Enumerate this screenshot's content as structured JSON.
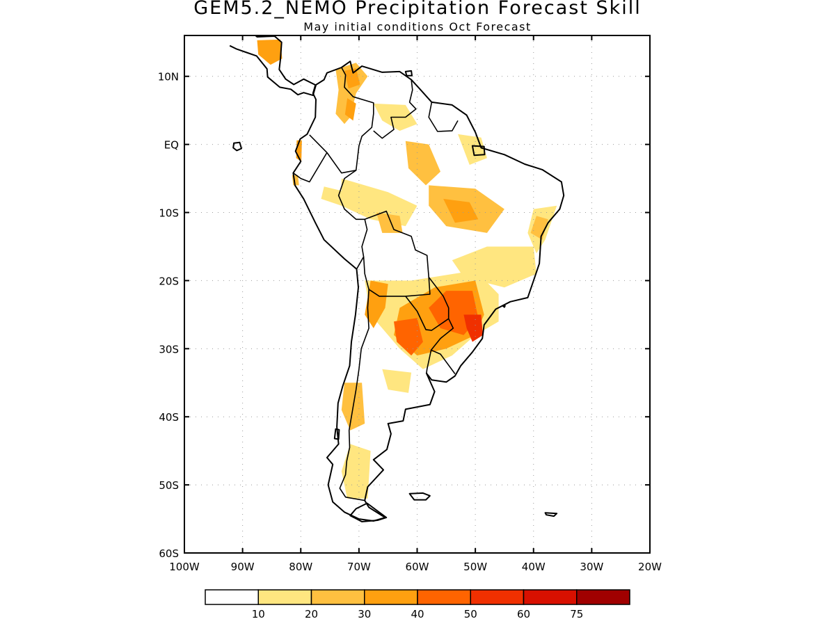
{
  "title": "GEM5.2_NEMO Precipitation Forecast Skill",
  "subtitle": "May initial conditions  Oct Forecast",
  "axes": {
    "lat_labels": [
      "10N",
      "EQ",
      "10S",
      "20S",
      "30S",
      "40S",
      "50S",
      "60S"
    ],
    "lat_values": [
      10,
      0,
      -10,
      -20,
      -30,
      -40,
      -50,
      -60
    ],
    "lon_labels": [
      "100W",
      "90W",
      "80W",
      "70W",
      "60W",
      "50W",
      "40W",
      "30W",
      "20W"
    ],
    "lon_values": [
      -100,
      -90,
      -80,
      -70,
      -60,
      -50,
      -40,
      -30,
      -20
    ],
    "lat_range": [
      -60,
      16
    ],
    "lon_range": [
      -100,
      -20
    ],
    "grid": "dotted"
  },
  "legend": {
    "labels": [
      "10",
      "20",
      "30",
      "40",
      "50",
      "60",
      "75"
    ],
    "colors": [
      "#ffffff",
      "#ffe680",
      "#ffc040",
      "#ffa010",
      "#ff6400",
      "#f03000",
      "#d81000",
      "#a00000"
    ]
  },
  "map": {
    "region": "South America",
    "coastline_color": "#000000",
    "skill_regions": [
      {
        "name": "central-america-skill",
        "level": 3,
        "lonlat": [
          [
            -87.5,
            15.3
          ],
          [
            -83.5,
            15.4
          ],
          [
            -83.2,
            12.6
          ],
          [
            -85.2,
            11.7
          ],
          [
            -87.3,
            13.2
          ]
        ]
      },
      {
        "name": "colombia-venezuela-skill",
        "level": 2,
        "lonlat": [
          [
            -74,
            11
          ],
          [
            -70.5,
            12
          ],
          [
            -68.5,
            10
          ],
          [
            -70.5,
            7.5
          ],
          [
            -71.5,
            4
          ],
          [
            -72.5,
            3
          ],
          [
            -74,
            4.5
          ],
          [
            -73.5,
            8
          ]
        ]
      },
      {
        "name": "venezuela-north-skill",
        "level": 3,
        "lonlat": [
          [
            -72.5,
            10.8
          ],
          [
            -70.5,
            11.2
          ],
          [
            -69.8,
            8.8
          ],
          [
            -71.8,
            8.2
          ]
        ]
      },
      {
        "name": "colombia-central-skill",
        "level": 3,
        "lonlat": [
          [
            -72,
            6.8
          ],
          [
            -70.5,
            6
          ],
          [
            -71,
            3.5
          ],
          [
            -72.4,
            4.4
          ]
        ]
      },
      {
        "name": "guiana-skill",
        "level": 1,
        "lonlat": [
          [
            -67.5,
            6
          ],
          [
            -62,
            5.8
          ],
          [
            -60,
            3
          ],
          [
            -63,
            2
          ],
          [
            -66,
            3.5
          ]
        ]
      },
      {
        "name": "amazon-north-skill",
        "level": 2,
        "lonlat": [
          [
            -62,
            0.5
          ],
          [
            -58,
            0
          ],
          [
            -56,
            -4
          ],
          [
            -58.5,
            -6
          ],
          [
            -61.5,
            -3.5
          ]
        ]
      },
      {
        "name": "brazil-central-skill",
        "level": 2,
        "lonlat": [
          [
            -58,
            -6
          ],
          [
            -50,
            -6.5
          ],
          [
            -45,
            -9.5
          ],
          [
            -48,
            -13
          ],
          [
            -55,
            -12
          ],
          [
            -58,
            -9
          ]
        ]
      },
      {
        "name": "brazil-central-core",
        "level": 3,
        "lonlat": [
          [
            -55.5,
            -8
          ],
          [
            -51,
            -8.5
          ],
          [
            -49.5,
            -11
          ],
          [
            -53.5,
            -11.5
          ]
        ]
      },
      {
        "name": "peru-brazil-border-skill",
        "level": 1,
        "lonlat": [
          [
            -73,
            -5
          ],
          [
            -65,
            -7
          ],
          [
            -60,
            -9
          ],
          [
            -62,
            -12
          ],
          [
            -68,
            -11
          ],
          [
            -73,
            -9
          ]
        ]
      },
      {
        "name": "bolivia-north-skill",
        "level": 2,
        "lonlat": [
          [
            -67,
            -10
          ],
          [
            -63,
            -10.5
          ],
          [
            -62.5,
            -13
          ],
          [
            -66,
            -13
          ]
        ]
      },
      {
        "name": "northeast-brazil-skill",
        "level": 1,
        "lonlat": [
          [
            -40,
            -9.5
          ],
          [
            -36,
            -9
          ],
          [
            -38,
            -14
          ],
          [
            -39.5,
            -16
          ],
          [
            -41,
            -13
          ]
        ]
      },
      {
        "name": "northeast-brazil-core",
        "level": 2,
        "lonlat": [
          [
            -39.5,
            -10.5
          ],
          [
            -37.5,
            -11
          ],
          [
            -38.5,
            -14
          ],
          [
            -40.5,
            -13
          ]
        ]
      },
      {
        "name": "brazil-interior-skill",
        "level": 1,
        "lonlat": [
          [
            -48,
            -15
          ],
          [
            -40,
            -15
          ],
          [
            -39.5,
            -19
          ],
          [
            -45,
            -21
          ],
          [
            -52,
            -19.5
          ],
          [
            -54,
            -17
          ]
        ]
      },
      {
        "name": "south-brazil-skill",
        "level": 1,
        "lonlat": [
          [
            -61,
            -20
          ],
          [
            -50,
            -18.5
          ],
          [
            -46,
            -22
          ],
          [
            -46,
            -26
          ],
          [
            -50,
            -28
          ],
          [
            -54,
            -31
          ],
          [
            -59,
            -33
          ],
          [
            -63,
            -30
          ],
          [
            -68,
            -25
          ],
          [
            -69,
            -20
          ]
        ]
      },
      {
        "name": "south-brazil-mid",
        "level": 3,
        "lonlat": [
          [
            -57,
            -21
          ],
          [
            -50,
            -20
          ],
          [
            -48.5,
            -25
          ],
          [
            -50,
            -28
          ],
          [
            -55,
            -30
          ],
          [
            -60,
            -31
          ],
          [
            -64,
            -28
          ],
          [
            -63,
            -24
          ]
        ]
      },
      {
        "name": "south-brazil-high",
        "level": 4,
        "lonlat": [
          [
            -55,
            -21.5
          ],
          [
            -50.5,
            -21.5
          ],
          [
            -49.5,
            -25.5
          ],
          [
            -52,
            -28
          ],
          [
            -56,
            -27
          ],
          [
            -58,
            -24
          ]
        ]
      },
      {
        "name": "parana-max",
        "level": 5,
        "lonlat": [
          [
            -52,
            -25
          ],
          [
            -49,
            -25
          ],
          [
            -48.7,
            -28
          ],
          [
            -50.5,
            -29
          ],
          [
            -51.5,
            -27
          ]
        ]
      },
      {
        "name": "argentina-north-high",
        "level": 4,
        "lonlat": [
          [
            -64,
            -26
          ],
          [
            -60,
            -25.5
          ],
          [
            -59,
            -29
          ],
          [
            -61,
            -31
          ],
          [
            -63.5,
            -29
          ]
        ]
      },
      {
        "name": "bolivia-chile-skill",
        "level": 3,
        "lonlat": [
          [
            -68,
            -20
          ],
          [
            -65,
            -20.5
          ],
          [
            -65.5,
            -24
          ],
          [
            -67.5,
            -27
          ],
          [
            -69,
            -25
          ]
        ]
      },
      {
        "name": "argentina-central-skill",
        "level": 1,
        "lonlat": [
          [
            -66,
            -33
          ],
          [
            -61,
            -33.5
          ],
          [
            -61.5,
            -36.5
          ],
          [
            -65,
            -36
          ]
        ]
      },
      {
        "name": "chile-central-skill",
        "level": 2,
        "lonlat": [
          [
            -72.5,
            -35
          ],
          [
            -69.5,
            -35
          ],
          [
            -69,
            -41
          ],
          [
            -71.5,
            -42
          ],
          [
            -73,
            -39
          ]
        ]
      },
      {
        "name": "patagonia-skill",
        "level": 1,
        "lonlat": [
          [
            -71.5,
            -44
          ],
          [
            -68,
            -45
          ],
          [
            -68.5,
            -52
          ],
          [
            -72,
            -52
          ],
          [
            -73,
            -48
          ]
        ]
      },
      {
        "name": "ecuador-skill",
        "level": 3,
        "lonlat": [
          [
            -80.7,
            0.6
          ],
          [
            -79.8,
            0.6
          ],
          [
            -79.9,
            -2.5
          ],
          [
            -80.8,
            -2
          ]
        ]
      },
      {
        "name": "peru-north-skill",
        "level": 2,
        "lonlat": [
          [
            -81.5,
            -4.5
          ],
          [
            -80.5,
            -4.5
          ],
          [
            -80.3,
            -6
          ],
          [
            -81.3,
            -6
          ]
        ]
      },
      {
        "name": "amazon-west-skill",
        "level": 1,
        "lonlat": [
          [
            -76,
            -6.2
          ],
          [
            -72,
            -7
          ],
          [
            -73,
            -9
          ],
          [
            -76.5,
            -8
          ]
        ]
      },
      {
        "name": "amazon-mouth-skill",
        "level": 1,
        "lonlat": [
          [
            -53,
            1.5
          ],
          [
            -49,
            1
          ],
          [
            -48,
            -2
          ],
          [
            -51,
            -3
          ]
        ]
      }
    ]
  }
}
